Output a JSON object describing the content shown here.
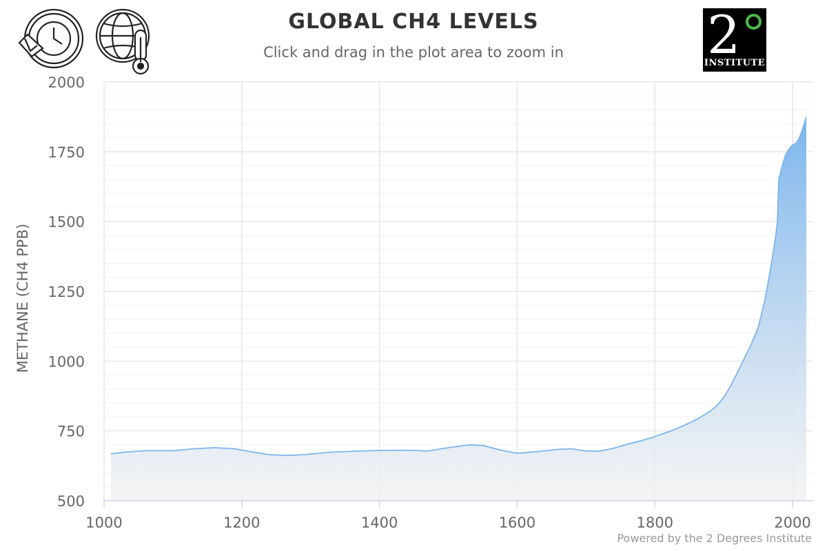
{
  "header": {
    "title": "GLOBAL CH4 LEVELS",
    "subtitle": "Click and drag in the plot area to zoom in"
  },
  "icons": {
    "history": "history-reset-icon",
    "climate": "globe-thermometer-icon"
  },
  "logo": {
    "digit": "2",
    "word": "INSTITUTE"
  },
  "credit": "Powered by the 2 Degrees Institute",
  "colors": {
    "line": "#7cb5ec",
    "fill_top": "#7cb5ec",
    "fill_bottom": "#f2f2f2",
    "grid": "#e6e6e6",
    "logo_accent": "#4cbb47"
  },
  "chart_data": {
    "type": "area",
    "title": "GLOBAL CH4 LEVELS",
    "subtitle": "Click and drag in the plot area to zoom in",
    "xlabel": "",
    "ylabel": "METHANE (CH4 PPB)",
    "xlim": [
      1000,
      2030
    ],
    "ylim": [
      500,
      2000
    ],
    "x_ticks": [
      1000,
      1200,
      1400,
      1600,
      1800,
      2000
    ],
    "y_ticks": [
      500,
      750,
      1000,
      1250,
      1500,
      1750,
      2000
    ],
    "grid": true,
    "legend": "none",
    "series": [
      {
        "x": [
          1010,
          1030,
          1060,
          1100,
          1130,
          1160,
          1190,
          1210,
          1240,
          1265,
          1290,
          1330,
          1370,
          1400,
          1440,
          1470,
          1500,
          1530,
          1550,
          1575,
          1600,
          1630,
          1660,
          1680,
          1700,
          1720,
          1740,
          1760,
          1780,
          1800,
          1820,
          1840,
          1860,
          1880,
          1890,
          1900,
          1910,
          1920,
          1930,
          1940,
          1950,
          1960,
          1965,
          1970,
          1975,
          1978,
          1980,
          1985,
          1990,
          1995,
          2000,
          2005,
          2010,
          2015,
          2020
        ],
        "y": [
          668,
          674,
          679,
          679,
          686,
          690,
          686,
          677,
          665,
          662,
          665,
          674,
          678,
          680,
          681,
          678,
          690,
          700,
          698,
          682,
          670,
          676,
          684,
          686,
          678,
          678,
          688,
          702,
          715,
          730,
          747,
          767,
          790,
          820,
          840,
          870,
          910,
          960,
          1010,
          1060,
          1120,
          1220,
          1290,
          1360,
          1440,
          1500,
          1650,
          1700,
          1740,
          1760,
          1775,
          1780,
          1800,
          1835,
          1875
        ]
      }
    ]
  }
}
